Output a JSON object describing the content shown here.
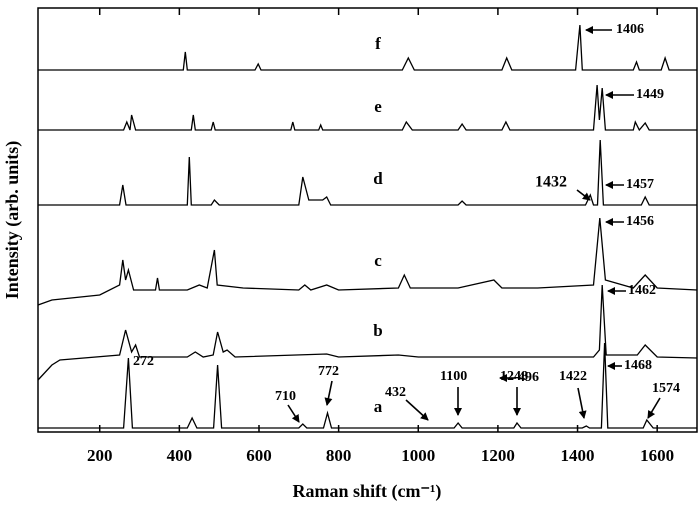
{
  "chart_data": {
    "type": "line",
    "xlabel": "Raman shift (cm⁻¹)",
    "ylabel": "Intensity (arb. units)",
    "xlim": [
      45,
      1700
    ],
    "xticks": [
      200,
      400,
      600,
      800,
      1000,
      1200,
      1400,
      1600
    ],
    "color": "#000000",
    "series": [
      {
        "name": "a",
        "x": [
          45,
          260,
          272,
          282,
          420,
          432,
          444,
          486,
          496,
          506,
          700,
          710,
          720,
          762,
          772,
          782,
          1090,
          1100,
          1110,
          1240,
          1248,
          1258,
          1412,
          1422,
          1430,
          1460,
          1468,
          1476,
          1565,
          1574,
          1590,
          1700
        ],
        "values": [
          0,
          0,
          70,
          0,
          0,
          10,
          0,
          0,
          63,
          0,
          0,
          4,
          0,
          0,
          15,
          0,
          0,
          5,
          0,
          0,
          5,
          0,
          0,
          2,
          0,
          0,
          85,
          0,
          0,
          8,
          0,
          0
        ]
      },
      {
        "name": "b",
        "x": [
          45,
          80,
          100,
          250,
          265,
          280,
          290,
          300,
          420,
          440,
          460,
          485,
          496,
          510,
          520,
          540,
          770,
          800,
          950,
          1000,
          1440,
          1455,
          1462,
          1472,
          1550,
          1570,
          1600,
          1700
        ],
        "values": [
          -20,
          -5,
          0,
          5,
          30,
          8,
          15,
          3,
          3,
          8,
          3,
          5,
          28,
          8,
          10,
          3,
          6,
          3,
          5,
          3,
          3,
          10,
          75,
          5,
          5,
          15,
          3,
          2
        ]
      },
      {
        "name": "c",
        "x": [
          45,
          80,
          200,
          250,
          258,
          265,
          272,
          285,
          340,
          345,
          350,
          420,
          450,
          470,
          488,
          495,
          560,
          700,
          715,
          730,
          770,
          800,
          950,
          965,
          980,
          1100,
          1190,
          1210,
          1300,
          1440,
          1456,
          1470,
          1540,
          1570,
          1600,
          1700
        ],
        "values": [
          -5,
          0,
          5,
          15,
          40,
          20,
          30,
          10,
          10,
          22,
          10,
          10,
          15,
          12,
          50,
          15,
          12,
          10,
          15,
          10,
          15,
          10,
          12,
          25,
          12,
          12,
          20,
          12,
          12,
          15,
          82,
          20,
          12,
          25,
          12,
          10
        ]
      },
      {
        "name": "d",
        "x": [
          45,
          250,
          258,
          266,
          420,
          425,
          430,
          480,
          488,
          500,
          700,
          710,
          725,
          760,
          770,
          780,
          1100,
          1110,
          1120,
          1420,
          1432,
          1440,
          1450,
          1457,
          1465,
          1560,
          1570,
          1580,
          1700
        ],
        "values": [
          0,
          0,
          20,
          0,
          0,
          48,
          0,
          0,
          5,
          0,
          0,
          28,
          5,
          5,
          8,
          0,
          0,
          4,
          0,
          0,
          10,
          0,
          0,
          65,
          0,
          0,
          8,
          0,
          0
        ]
      },
      {
        "name": "e",
        "x": [
          45,
          260,
          268,
          276,
          280,
          290,
          430,
          435,
          440,
          480,
          485,
          490,
          680,
          685,
          690,
          750,
          755,
          760,
          960,
          970,
          985,
          1100,
          1110,
          1120,
          1210,
          1220,
          1230,
          1440,
          1449,
          1455,
          1462,
          1470,
          1540,
          1545,
          1555,
          1570,
          1580,
          1700
        ],
        "values": [
          0,
          0,
          8,
          0,
          15,
          0,
          0,
          15,
          0,
          0,
          8,
          0,
          0,
          8,
          0,
          0,
          5,
          0,
          0,
          8,
          0,
          0,
          6,
          0,
          0,
          8,
          0,
          0,
          45,
          10,
          42,
          0,
          0,
          8,
          0,
          7,
          0,
          0
        ]
      },
      {
        "name": "f",
        "x": [
          45,
          410,
          415,
          420,
          590,
          598,
          605,
          960,
          975,
          990,
          1210,
          1222,
          1235,
          1395,
          1406,
          1412,
          1540,
          1548,
          1555,
          1610,
          1620,
          1630,
          1700
        ],
        "values": [
          0,
          0,
          18,
          0,
          0,
          6,
          0,
          0,
          12,
          0,
          0,
          12,
          0,
          0,
          45,
          0,
          0,
          8,
          0,
          0,
          12,
          0,
          0
        ]
      }
    ],
    "annotations": [
      "272",
      "432",
      "496",
      "710",
      "772",
      "1100",
      "1248",
      "1422",
      "1468",
      "1574",
      "1462",
      "1456",
      "1432",
      "1457",
      "1449",
      "1406"
    ]
  }
}
